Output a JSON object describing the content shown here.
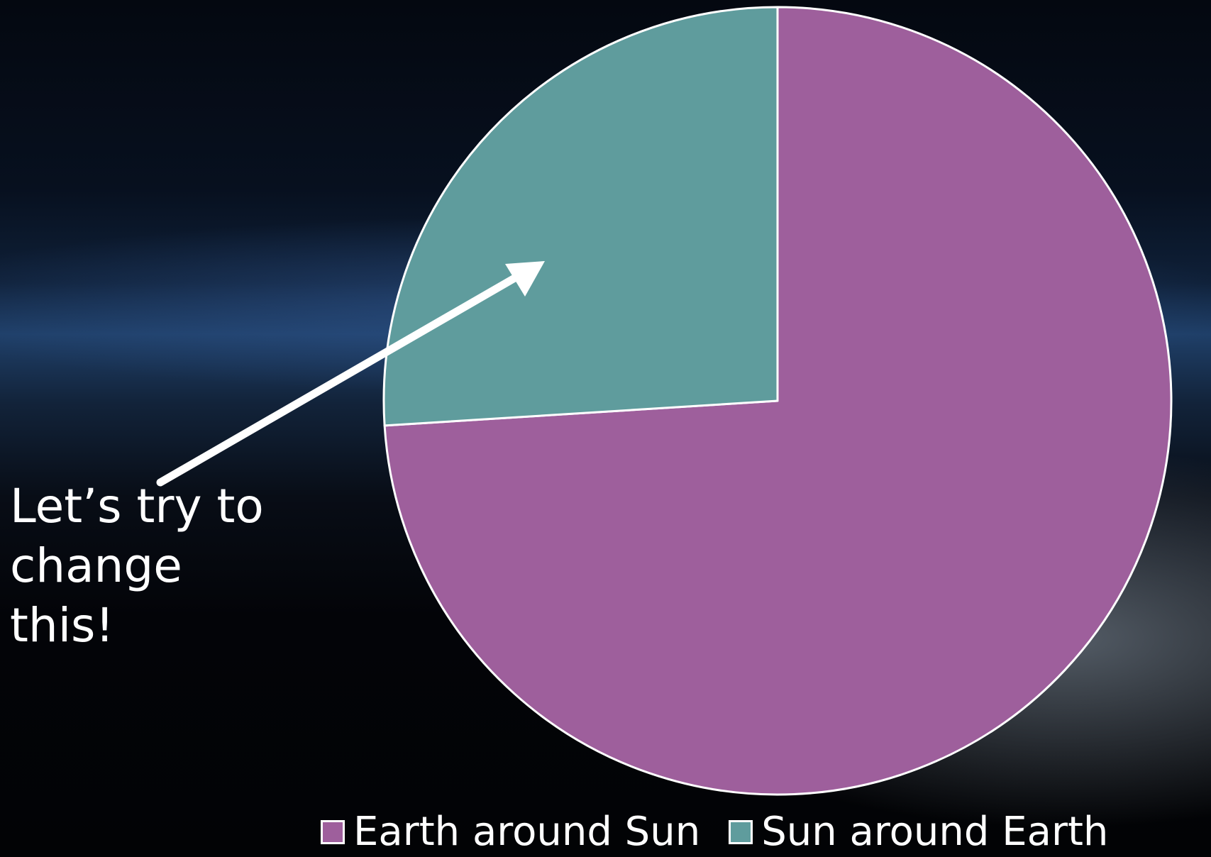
{
  "chart_data": {
    "type": "pie",
    "categories": [
      "Earth around Sun",
      "Sun around Earth"
    ],
    "values": [
      74,
      26
    ],
    "colors": [
      "#9e5f9c",
      "#5f9c9d"
    ],
    "start_angle_deg": 0,
    "direction": "clockwise",
    "legend": {
      "position": "bottom",
      "entries": [
        "Earth around Sun",
        "Sun around Earth"
      ]
    },
    "annotation": {
      "text": "Let’s try to\nchange\nthis!",
      "arrow": "points to Sun around Earth slice"
    }
  }
}
